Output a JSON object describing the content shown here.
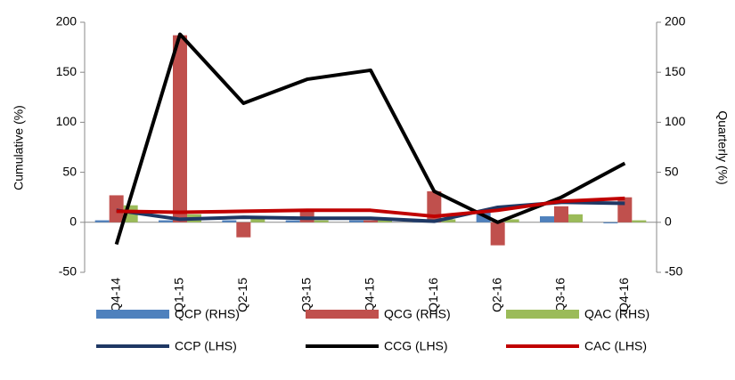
{
  "chart_data": {
    "type": "bar-line",
    "y_label": "Cumulative (%)",
    "y2_label": "Quarterly (%)",
    "categories": [
      "Q4-14",
      "Q1-15",
      "Q2-15",
      "Q3-15",
      "Q4-15",
      "Q1-16",
      "Q2-16",
      "Q3-16",
      "Q4-16"
    ],
    "ylim": [
      -50,
      200
    ],
    "yticks": [
      -50,
      0,
      50,
      100,
      150,
      200
    ],
    "y2lim": [
      -50,
      200
    ],
    "y2ticks": [
      -50,
      0,
      50,
      100,
      150,
      200
    ],
    "series": [
      {
        "name": "QCP (RHS)",
        "type": "bar",
        "axis": "y2",
        "color": "#4f81bd",
        "values": [
          2,
          2,
          2,
          2,
          2,
          1,
          10,
          6,
          -1
        ]
      },
      {
        "name": "QCG (RHS)",
        "type": "bar",
        "axis": "y2",
        "color": "#c0504d",
        "values": [
          27,
          187,
          -15,
          12,
          2,
          31,
          -23,
          16,
          25
        ]
      },
      {
        "name": "QAC (RHS)",
        "type": "bar",
        "axis": "y2",
        "color": "#9bbb59",
        "values": [
          17,
          8,
          4,
          2,
          2,
          3,
          3,
          8,
          2
        ]
      },
      {
        "name": "CCP (LHS)",
        "type": "line",
        "color": "#1f3864",
        "values": [
          12,
          3,
          5,
          4,
          4,
          1,
          15,
          20,
          19
        ]
      },
      {
        "name": "CCG (LHS)",
        "type": "line",
        "color": "#000000",
        "values": [
          -22,
          188,
          119,
          143,
          152,
          31,
          0,
          25,
          59
        ]
      },
      {
        "name": "CAC (LHS)",
        "type": "line",
        "color": "#c00000",
        "values": [
          11,
          10,
          11,
          12,
          12,
          6,
          12,
          21,
          24
        ]
      }
    ]
  }
}
